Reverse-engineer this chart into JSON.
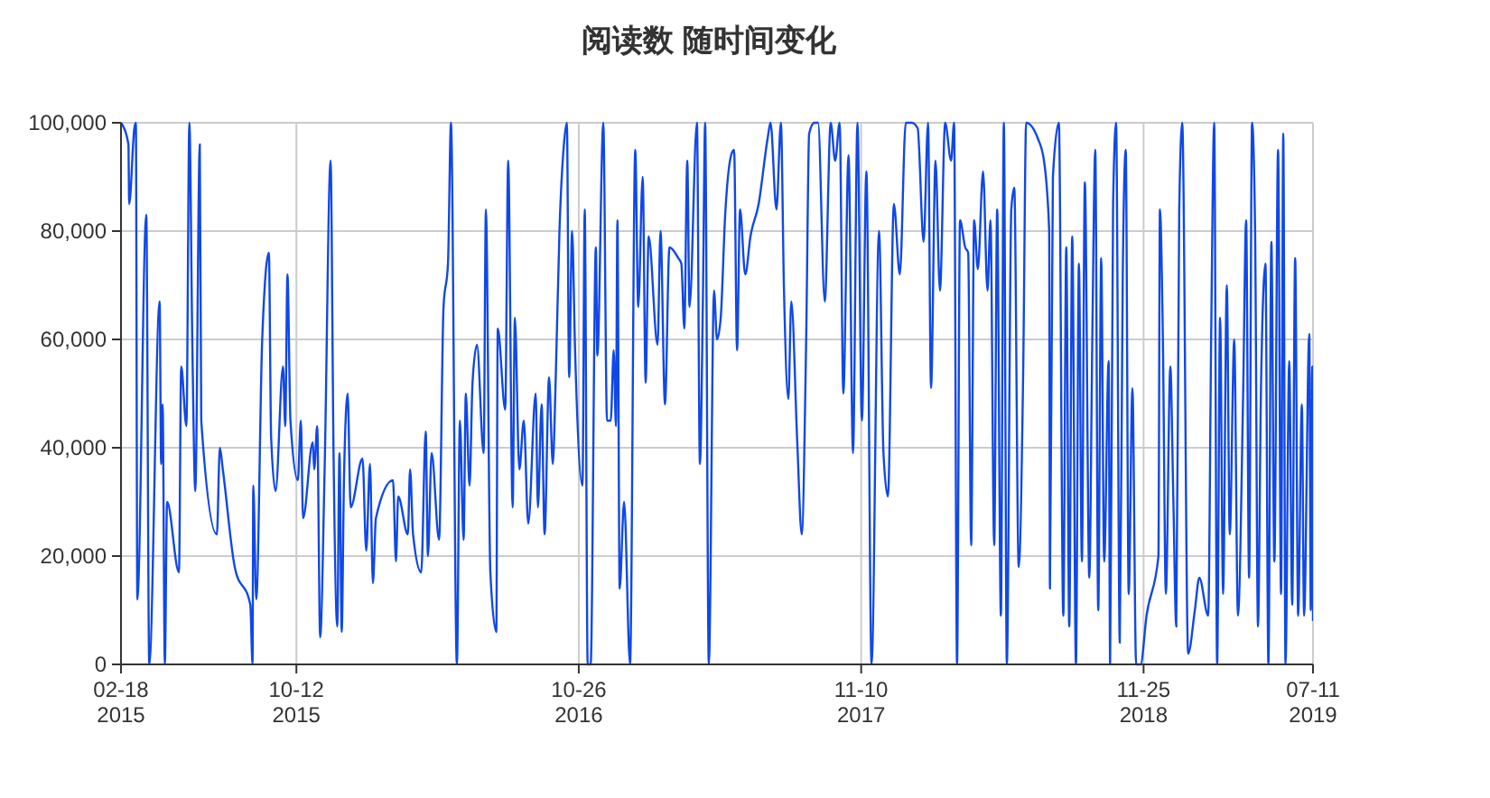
{
  "chart_data": {
    "type": "line",
    "title": "阅读数 随时间变化",
    "color": "#1048e8",
    "grid": true,
    "line_style": "solid",
    "xlim": [
      "2015-02-18",
      "2019-07-11"
    ],
    "xticks": [
      {
        "value": "2015-02-18",
        "label": "02-18\n2015"
      },
      {
        "value": "2015-10-12",
        "label": "10-12\n2015"
      },
      {
        "value": "2016-10-26",
        "label": "10-26\n2016"
      },
      {
        "value": "2017-11-10",
        "label": "11-10\n2017"
      },
      {
        "value": "2018-11-25",
        "label": "11-25\n2018"
      },
      {
        "value": "2019-07-11",
        "label": "07-11\n2019"
      }
    ],
    "ylim": [
      0,
      100000
    ],
    "yticks": [
      {
        "value": 0,
        "label": "0"
      },
      {
        "value": 20000,
        "label": "20,000"
      },
      {
        "value": 40000,
        "label": "40,000"
      },
      {
        "value": 60000,
        "label": "60,000"
      },
      {
        "value": 80000,
        "label": "80,000"
      },
      {
        "value": 100000,
        "label": "100,000"
      }
    ],
    "x": [
      "2015-02-18",
      "2015-02-28",
      "2015-03-01",
      "2015-03-08",
      "2015-03-10",
      "2015-03-12",
      "2015-03-24",
      "2015-03-28",
      "2015-04-11",
      "2015-04-13",
      "2015-04-15",
      "2015-04-18",
      "2015-04-21",
      "2015-05-07",
      "2015-05-10",
      "2015-05-17",
      "2015-05-21",
      "2015-05-25",
      "2015-05-29",
      "2015-06-04",
      "2015-06-06",
      "2015-06-27",
      "2015-07-01",
      "2015-07-05",
      "2015-07-21",
      "2015-08-11",
      "2015-08-14",
      "2015-08-15",
      "2015-08-19",
      "2015-08-27",
      "2015-09-05",
      "2015-09-08",
      "2015-09-14",
      "2015-09-24",
      "2015-09-27",
      "2015-09-30",
      "2015-10-04",
      "2015-10-14",
      "2015-10-18",
      "2015-10-21",
      "2015-11-03",
      "2015-11-05",
      "2015-11-09",
      "2015-11-13",
      "2015-11-19",
      "2015-11-27",
      "2015-12-01",
      "2015-12-06",
      "2015-12-09",
      "2015-12-12",
      "2015-12-15",
      "2015-12-20",
      "2015-12-24",
      "2016-01-09",
      "2016-01-14",
      "2016-01-19",
      "2016-01-23",
      "2016-01-27",
      "2016-02-19",
      "2016-02-23",
      "2016-02-26",
      "2016-03-10",
      "2016-03-13",
      "2016-03-17",
      "2016-03-28",
      "2016-04-03",
      "2016-04-06",
      "2016-04-11",
      "2016-04-21",
      "2016-04-27",
      "2016-05-03",
      "2016-05-07",
      "2016-05-15",
      "2016-05-19",
      "2016-05-24",
      "2016-05-27",
      "2016-06-01",
      "2016-06-05",
      "2016-06-11",
      "2016-06-20",
      "2016-06-23",
      "2016-06-29",
      "2016-07-07",
      "2016-07-09",
      "2016-07-19",
      "2016-07-23",
      "2016-07-29",
      "2016-08-01",
      "2016-08-07",
      "2016-08-13",
      "2016-08-19",
      "2016-08-29",
      "2016-09-01",
      "2016-09-06",
      "2016-09-10",
      "2016-09-16",
      "2016-09-21",
      "2016-09-25",
      "2016-09-30",
      "2016-10-06",
      "2016-10-10",
      "2016-10-13",
      "2016-10-17",
      "2016-10-21",
      "2016-10-31",
      "2016-11-03",
      "2016-11-07",
      "2016-11-11",
      "2016-11-18",
      "2016-11-20",
      "2016-11-28",
      "2016-12-03",
      "2016-12-08",
      "2016-12-12",
      "2016-12-15",
      "2016-12-17",
      "2016-12-20",
      "2016-12-26",
      "2017-01-03",
      "2017-01-10",
      "2017-01-14",
      "2017-01-20",
      "2017-01-24",
      "2017-01-28",
      "2017-02-09",
      "2017-02-13",
      "2017-02-19",
      "2017-02-25",
      "2017-03-09",
      "2017-03-13",
      "2017-03-17",
      "2017-03-21",
      "2017-03-24",
      "2017-04-03",
      "2017-04-07",
      "2017-04-11",
      "2017-04-14",
      "2017-04-19",
      "2017-04-26",
      "2017-04-30",
      "2017-05-05",
      "2017-05-11",
      "2017-05-19",
      "2017-05-23",
      "2017-05-27",
      "2017-05-31",
      "2017-06-07",
      "2017-06-14",
      "2017-06-25",
      "2017-07-07",
      "2017-07-11",
      "2017-07-19",
      "2017-07-25",
      "2017-07-29",
      "2017-08-04",
      "2017-08-08",
      "2017-08-16",
      "2017-08-22",
      "2017-08-28",
      "2017-09-01",
      "2017-09-08",
      "2017-09-13",
      "2017-09-22",
      "2017-09-30",
      "2017-10-06",
      "2017-10-12",
      "2017-10-17",
      "2017-10-24",
      "2017-10-30",
      "2017-11-05",
      "2017-11-11",
      "2017-11-17",
      "2017-11-24",
      "2017-12-04",
      "2017-12-10",
      "2017-12-16",
      "2017-12-24",
      "2018-01-01",
      "2018-01-09",
      "2018-01-17",
      "2018-01-25",
      "2018-02-02",
      "2018-02-08",
      "2018-02-12",
      "2018-02-18",
      "2018-02-24",
      "2018-03-03",
      "2018-03-11",
      "2018-03-15",
      "2018-03-19",
      "2018-03-23",
      "2018-03-30",
      "2018-04-03",
      "2018-04-07",
      "2018-04-11",
      "2018-04-16",
      "2018-04-23",
      "2018-04-29",
      "2018-05-03",
      "2018-05-08",
      "2018-05-12",
      "2018-05-17",
      "2018-05-21",
      "2018-05-25",
      "2018-05-31",
      "2018-06-04",
      "2018-06-10",
      "2018-06-16",
      "2018-06-20",
      "2018-07-06",
      "2018-07-14",
      "2018-07-21",
      "2018-07-22",
      "2018-07-26",
      "2018-08-03",
      "2018-08-09",
      "2018-08-13",
      "2018-08-17",
      "2018-08-21",
      "2018-08-26",
      "2018-08-30",
      "2018-09-03",
      "2018-09-07",
      "2018-09-13",
      "2018-09-17",
      "2018-09-21",
      "2018-09-25",
      "2018-09-29",
      "2018-10-03",
      "2018-10-09",
      "2018-10-11",
      "2018-10-15",
      "2018-10-19",
      "2018-10-24",
      "2018-10-28",
      "2018-11-01",
      "2018-11-05",
      "2018-11-10",
      "2018-11-15",
      "2018-11-21",
      "2018-11-29",
      "2018-12-15",
      "2018-12-17",
      "2018-12-21",
      "2018-12-25",
      "2018-12-31",
      "2019-01-04",
      "2019-01-08",
      "2019-01-12",
      "2019-01-16",
      "2019-01-24",
      "2019-02-02",
      "2019-02-08",
      "2019-02-20",
      "2019-02-24",
      "2019-02-28",
      "2019-03-04",
      "2019-03-08",
      "2019-03-12",
      "2019-03-17",
      "2019-03-21",
      "2019-03-27",
      "2019-04-01",
      "2019-04-08",
      "2019-04-12",
      "2019-04-16",
      "2019-04-20",
      "2019-04-24",
      "2019-04-28",
      "2019-05-02",
      "2019-05-08",
      "2019-05-12",
      "2019-05-16",
      "2019-05-20",
      "2019-05-25",
      "2019-05-29",
      "2019-06-01",
      "2019-06-04",
      "2019-06-09",
      "2019-06-13",
      "2019-06-17",
      "2019-06-21",
      "2019-06-26",
      "2019-06-29",
      "2019-07-06",
      "2019-07-08",
      "2019-07-10",
      "2019-07-11"
    ],
    "values": [
      100000,
      96000,
      85000,
      99000,
      100000,
      12000,
      83000,
      0,
      67000,
      37000,
      48000,
      0,
      30000,
      17000,
      55000,
      44000,
      100000,
      59000,
      32000,
      96000,
      45000,
      24000,
      40000,
      36000,
      18000,
      11000,
      0,
      33000,
      12000,
      60000,
      76000,
      42000,
      32000,
      55000,
      44000,
      72000,
      45000,
      34000,
      45000,
      27000,
      41000,
      36000,
      44000,
      5000,
      36000,
      93000,
      39000,
      7000,
      39000,
      6000,
      34000,
      50000,
      29000,
      38000,
      21000,
      37000,
      15000,
      27000,
      34000,
      19000,
      31000,
      24000,
      36000,
      24000,
      17000,
      43000,
      20000,
      39000,
      23000,
      66000,
      74000,
      100000,
      0,
      45000,
      23000,
      50000,
      33000,
      52000,
      59000,
      39000,
      84000,
      17000,
      6000,
      62000,
      47000,
      93000,
      29000,
      64000,
      36000,
      45000,
      26000,
      50000,
      29000,
      48000,
      24000,
      53000,
      37000,
      53000,
      80000,
      96000,
      100000,
      53000,
      80000,
      58000,
      33000,
      84000,
      0,
      0,
      77000,
      57000,
      100000,
      45000,
      45000,
      58000,
      44000,
      82000,
      14000,
      30000,
      0,
      95000,
      66000,
      90000,
      52000,
      79000,
      59000,
      80000,
      48000,
      77000,
      75000,
      74000,
      62000,
      93000,
      66000,
      100000,
      37000,
      67000,
      100000,
      0,
      69000,
      60000,
      64000,
      83000,
      94000,
      95000,
      58000,
      84000,
      72000,
      79000,
      85000,
      97000,
      100000,
      84000,
      100000,
      70000,
      49000,
      67000,
      41000,
      24000,
      60000,
      98000,
      100000,
      100000,
      67000,
      100000,
      93000,
      100000,
      50000,
      94000,
      39000,
      100000,
      45000,
      91000,
      0,
      80000,
      39000,
      31000,
      85000,
      72000,
      100000,
      100000,
      99000,
      78000,
      100000,
      51000,
      93000,
      69000,
      100000,
      93000,
      100000,
      0,
      82000,
      77000,
      76000,
      22000,
      82000,
      73000,
      91000,
      69000,
      82000,
      22000,
      84000,
      9000,
      100000,
      0,
      84000,
      88000,
      18000,
      54000,
      100000,
      97000,
      93000,
      80000,
      14000,
      90000,
      100000,
      9000,
      77000,
      7000,
      79000,
      0,
      74000,
      19000,
      89000,
      16000,
      60000,
      95000,
      10000,
      75000,
      19000,
      56000,
      0,
      85000,
      100000,
      4000,
      72000,
      95000,
      13000,
      51000,
      0,
      0,
      9000,
      20000,
      84000,
      60000,
      13000,
      55000,
      31000,
      7000,
      84000,
      100000,
      2000,
      10000,
      16000,
      9000,
      61000,
      100000,
      0,
      64000,
      13000,
      70000,
      24000,
      60000,
      9000,
      50000,
      82000,
      16000,
      100000,
      81000,
      7000,
      51000,
      74000,
      0,
      78000,
      19000,
      95000,
      13000,
      98000,
      0,
      56000,
      11000,
      75000,
      9000,
      48000,
      9000,
      61000,
      10000,
      55000,
      8000
    ]
  }
}
